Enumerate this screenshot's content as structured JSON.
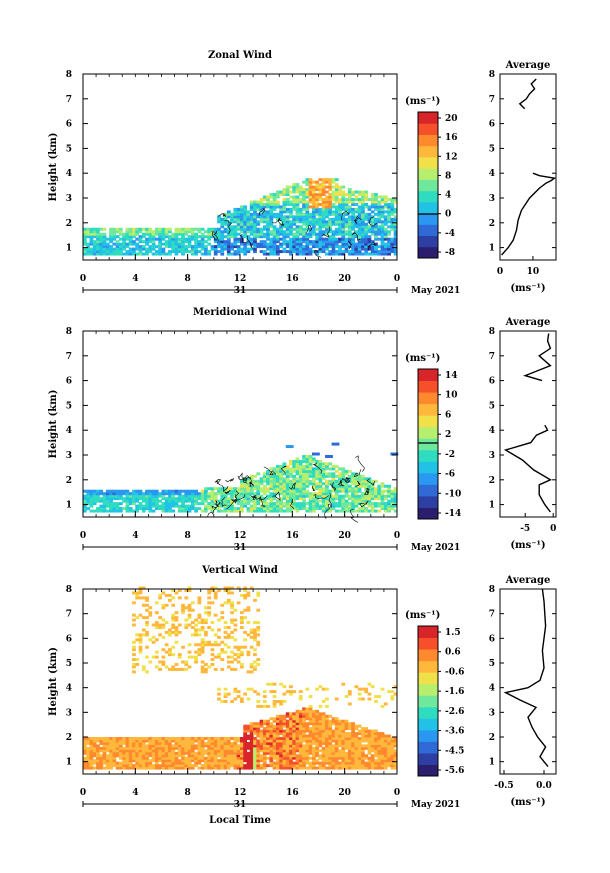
{
  "x_axis": {
    "ticks": [
      "0",
      "4",
      "8",
      "12",
      "16",
      "20",
      "0"
    ],
    "day_label": "31",
    "month_label": "May 2021",
    "xlabel": "Local Time"
  },
  "y_axis": {
    "label": "Height (km)",
    "ticks": [
      "1",
      "2",
      "3",
      "4",
      "5",
      "6",
      "7",
      "8"
    ]
  },
  "colormap": [
    "#2b1e6e",
    "#2e3fa3",
    "#2f6ad6",
    "#2a97f0",
    "#22c2e6",
    "#2fdcc0",
    "#6fe89c",
    "#b8ee6e",
    "#f0e14a",
    "#ffb83c",
    "#ff8a2e",
    "#f5502a",
    "#d8252a"
  ],
  "chart_data": [
    {
      "type": "heatmap",
      "title": "Zonal Wind",
      "ylabel": "Height (km)",
      "xlim": [
        0,
        24
      ],
      "ylim": [
        0.5,
        8
      ],
      "unit": "(ms⁻¹)",
      "colorbar": {
        "ticks": [
          "20",
          "16",
          "12",
          "8",
          "4",
          "0",
          "-4",
          "-8"
        ],
        "range": [
          -10,
          22
        ]
      },
      "profile": {
        "title": "Average",
        "xticks": [
          "0",
          "10"
        ],
        "xlim": [
          0,
          17
        ],
        "xlabel": "(ms⁻¹)",
        "segments": [
          {
            "height": [
              0.7,
              1.0,
              1.3,
              1.7,
              2.1,
              2.5,
              3.0,
              3.4,
              3.6,
              3.7,
              3.8,
              3.9,
              4.0
            ],
            "value": [
              0.5,
              2.5,
              4.0,
              5.0,
              5.5,
              6.5,
              9.0,
              12.0,
              14.0,
              15.5,
              16.5,
              12.0,
              10.0
            ]
          },
          {
            "height": [
              6.6,
              6.8,
              7.0,
              7.2,
              7.4,
              7.6,
              7.8
            ],
            "value": [
              7.5,
              6.0,
              8.0,
              9.0,
              10.5,
              9.5,
              11.0
            ]
          }
        ]
      }
    },
    {
      "type": "heatmap",
      "title": "Meridional Wind",
      "ylabel": "Height (km)",
      "xlim": [
        0,
        24
      ],
      "ylim": [
        0.5,
        8
      ],
      "unit": "(ms⁻¹)",
      "colorbar": {
        "ticks": [
          "14",
          "10",
          "6",
          "2",
          "-2",
          "-6",
          "-10",
          "-14"
        ],
        "range": [
          -16,
          17
        ]
      },
      "profile": {
        "title": "Average",
        "xticks": [
          "-5",
          "0"
        ],
        "xlim": [
          -9.5,
          0.5
        ],
        "xlabel": "(ms⁻¹)",
        "segments": [
          {
            "height": [
              0.7,
              1.0,
              1.4,
              1.8,
              2.0,
              2.4,
              2.8,
              3.2,
              3.5,
              3.8,
              4.0,
              4.2
            ],
            "value": [
              -0.5,
              -1.5,
              -2.5,
              -2.5,
              -0.5,
              -3.5,
              -5.5,
              -8.5,
              -4.0,
              -3.0,
              -1.0,
              -1.5
            ]
          },
          {
            "height": [
              6.0,
              6.2,
              6.6,
              7.0,
              7.3,
              7.6,
              7.9
            ],
            "value": [
              -2.0,
              -5.0,
              -0.5,
              -2.5,
              -0.5,
              -1.0,
              -0.8
            ]
          }
        ]
      }
    },
    {
      "type": "heatmap",
      "title": "Vertical Wind",
      "ylabel": "Height (km)",
      "xlim": [
        0,
        24
      ],
      "ylim": [
        0.5,
        8
      ],
      "unit": "(ms⁻¹)",
      "colorbar": {
        "ticks": [
          "1.5",
          "0.6",
          "-0.6",
          "-1.6",
          "-2.6",
          "-3.6",
          "-4.5",
          "-5.6"
        ],
        "range": [
          -6,
          2
        ]
      },
      "profile": {
        "title": "Average",
        "xticks": [
          "-0.5",
          "0.0"
        ],
        "xlim": [
          -0.55,
          0.15
        ],
        "xlabel": "(ms⁻¹)",
        "segments": [
          {
            "height": [
              0.8,
              1.2,
              1.6,
              2.0,
              2.4,
              2.8,
              3.2,
              3.5,
              3.8,
              4.0,
              4.3,
              4.8,
              5.5,
              6.5,
              7.5,
              8.0
            ],
            "value": [
              0.05,
              -0.05,
              0.02,
              -0.08,
              -0.15,
              -0.2,
              -0.1,
              -0.3,
              -0.48,
              -0.2,
              -0.05,
              0.0,
              -0.02,
              0.02,
              0.0,
              -0.02
            ]
          }
        ]
      }
    }
  ]
}
